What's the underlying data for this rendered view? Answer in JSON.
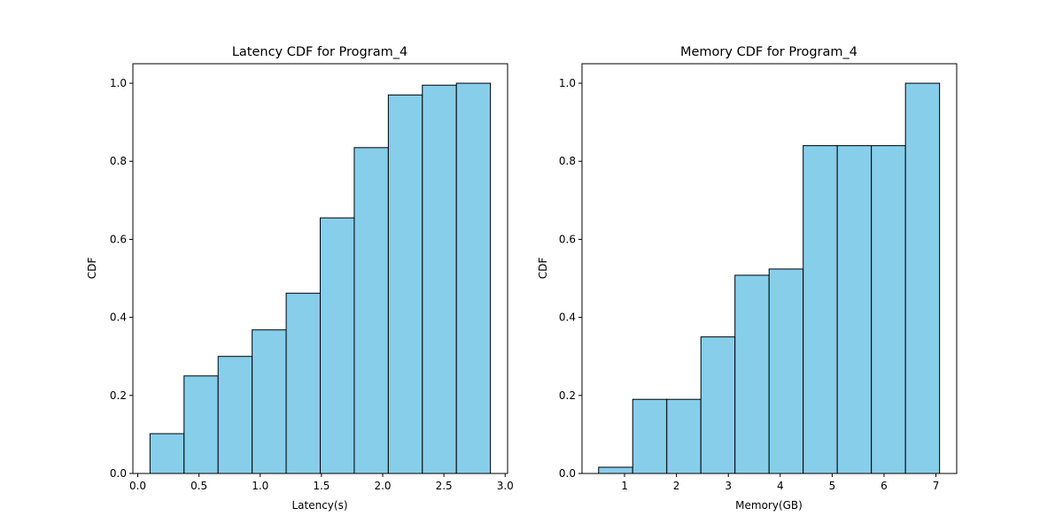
{
  "chart_data": [
    {
      "type": "bar",
      "histogram": true,
      "title": "Latency CDF for Program_4",
      "xlabel": "Latency(s)",
      "ylabel": "CDF",
      "xlim": [
        -0.04,
        3.02
      ],
      "ylim": [
        0.0,
        1.05
      ],
      "xticks": [
        0.0,
        0.5,
        1.0,
        1.5,
        2.0,
        2.5,
        3.0
      ],
      "xtick_labels": [
        "0.0",
        "0.5",
        "1.0",
        "1.5",
        "2.0",
        "2.5",
        "3.0"
      ],
      "yticks": [
        0.0,
        0.2,
        0.4,
        0.6,
        0.8,
        1.0
      ],
      "ytick_labels": [
        "0.0",
        "0.2",
        "0.4",
        "0.6",
        "0.8",
        "1.0"
      ],
      "bin_edges": [
        0.1,
        0.378,
        0.656,
        0.934,
        1.212,
        1.49,
        1.768,
        2.046,
        2.324,
        2.602,
        2.88
      ],
      "values": [
        0.102,
        0.25,
        0.3,
        0.368,
        0.462,
        0.655,
        0.835,
        0.97,
        0.995,
        1.0
      ],
      "bar_color": "#87ceeb",
      "edge_color": "#000000",
      "grid": false
    },
    {
      "type": "bar",
      "histogram": true,
      "title": "Memory CDF for Program_4",
      "xlabel": "Memory(GB)",
      "ylabel": "CDF",
      "xlim": [
        0.18,
        7.4
      ],
      "ylim": [
        0.0,
        1.05
      ],
      "xticks": [
        1,
        2,
        3,
        4,
        5,
        6,
        7
      ],
      "xtick_labels": [
        "1",
        "2",
        "3",
        "4",
        "5",
        "6",
        "7"
      ],
      "yticks": [
        0.0,
        0.2,
        0.4,
        0.6,
        0.8,
        1.0
      ],
      "ytick_labels": [
        "0.0",
        "0.2",
        "0.4",
        "0.6",
        "0.8",
        "1.0"
      ],
      "bin_edges": [
        0.5,
        1.157,
        1.814,
        2.471,
        3.128,
        3.785,
        4.442,
        5.099,
        5.756,
        6.413,
        7.07
      ],
      "values": [
        0.016,
        0.19,
        0.19,
        0.35,
        0.508,
        0.524,
        0.84,
        0.84,
        0.84,
        1.0
      ],
      "bar_color": "#87ceeb",
      "edge_color": "#000000",
      "grid": false
    }
  ]
}
